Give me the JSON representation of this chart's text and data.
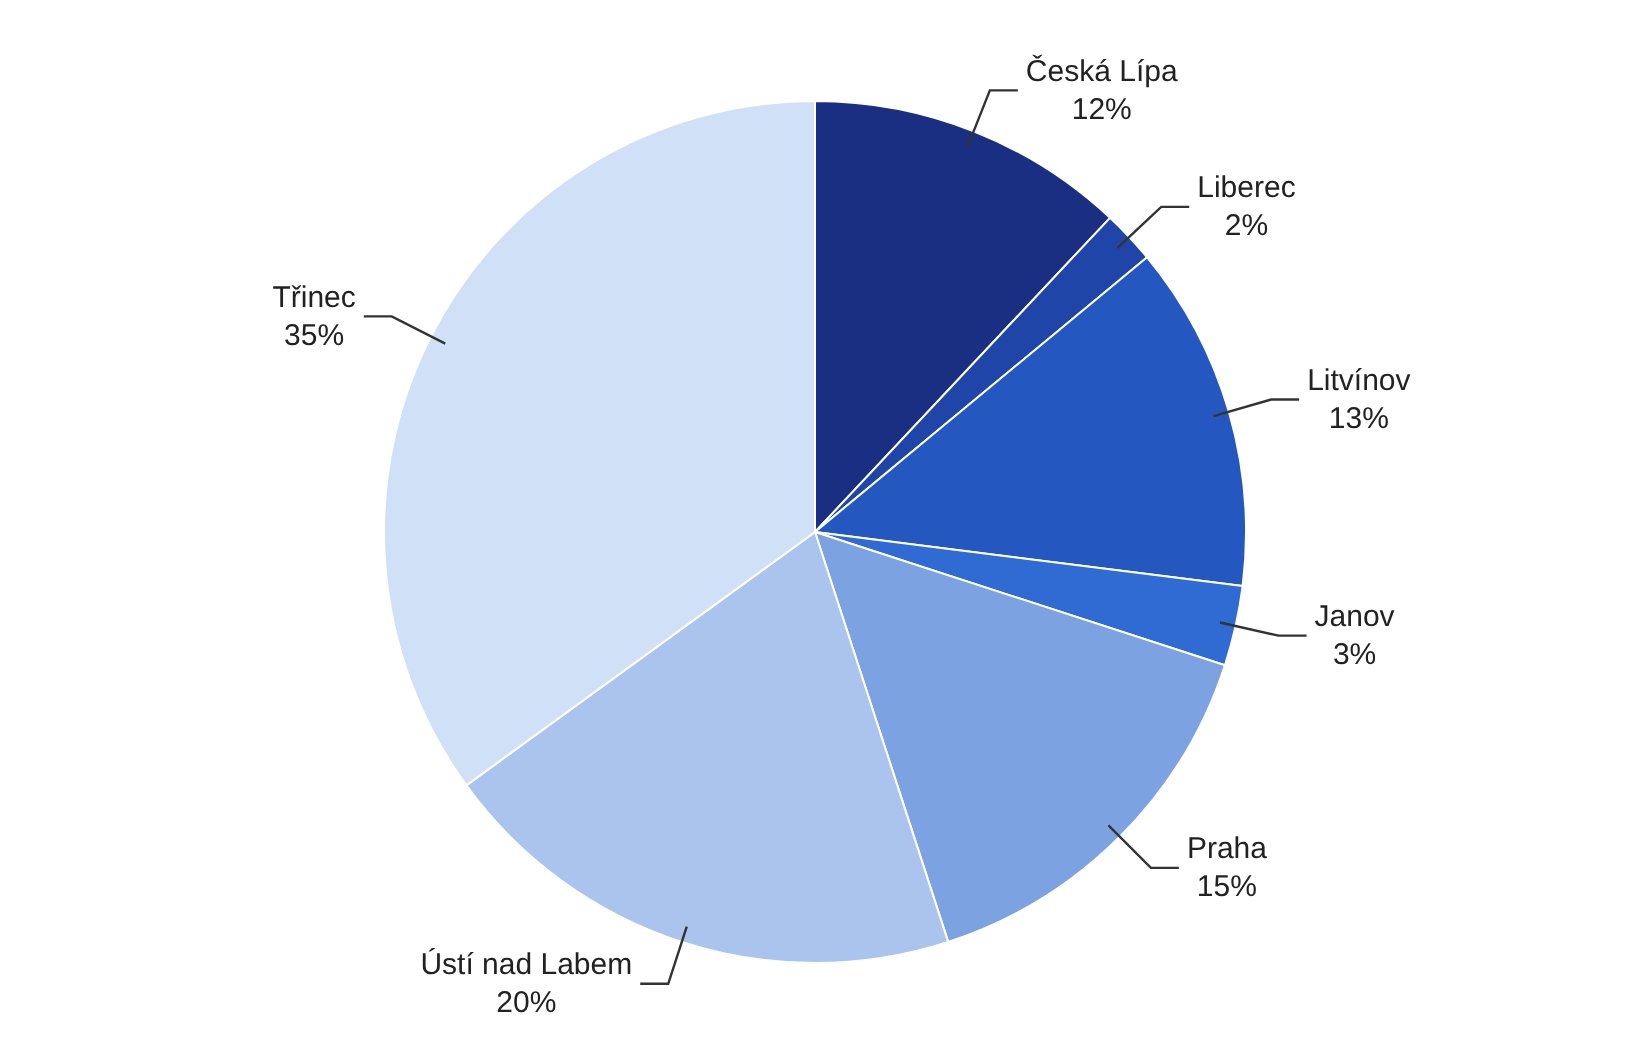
{
  "chart_data": {
    "type": "pie",
    "categories": [
      "Česká Lípa",
      "Liberec",
      "Litvínov",
      "Janov",
      "Praha",
      "Ústí nad Labem",
      "Třinec"
    ],
    "values": [
      12,
      2,
      13,
      3,
      15,
      20,
      35
    ],
    "colors": [
      "#1b2f82",
      "#1f45a8",
      "#2457c0",
      "#2f6bd2",
      "#7da2e2",
      "#abc4ee",
      "#d0e1f7"
    ],
    "value_labels": [
      "12%",
      "2%",
      "13%",
      "3%",
      "15%",
      "20%",
      "35%"
    ]
  }
}
